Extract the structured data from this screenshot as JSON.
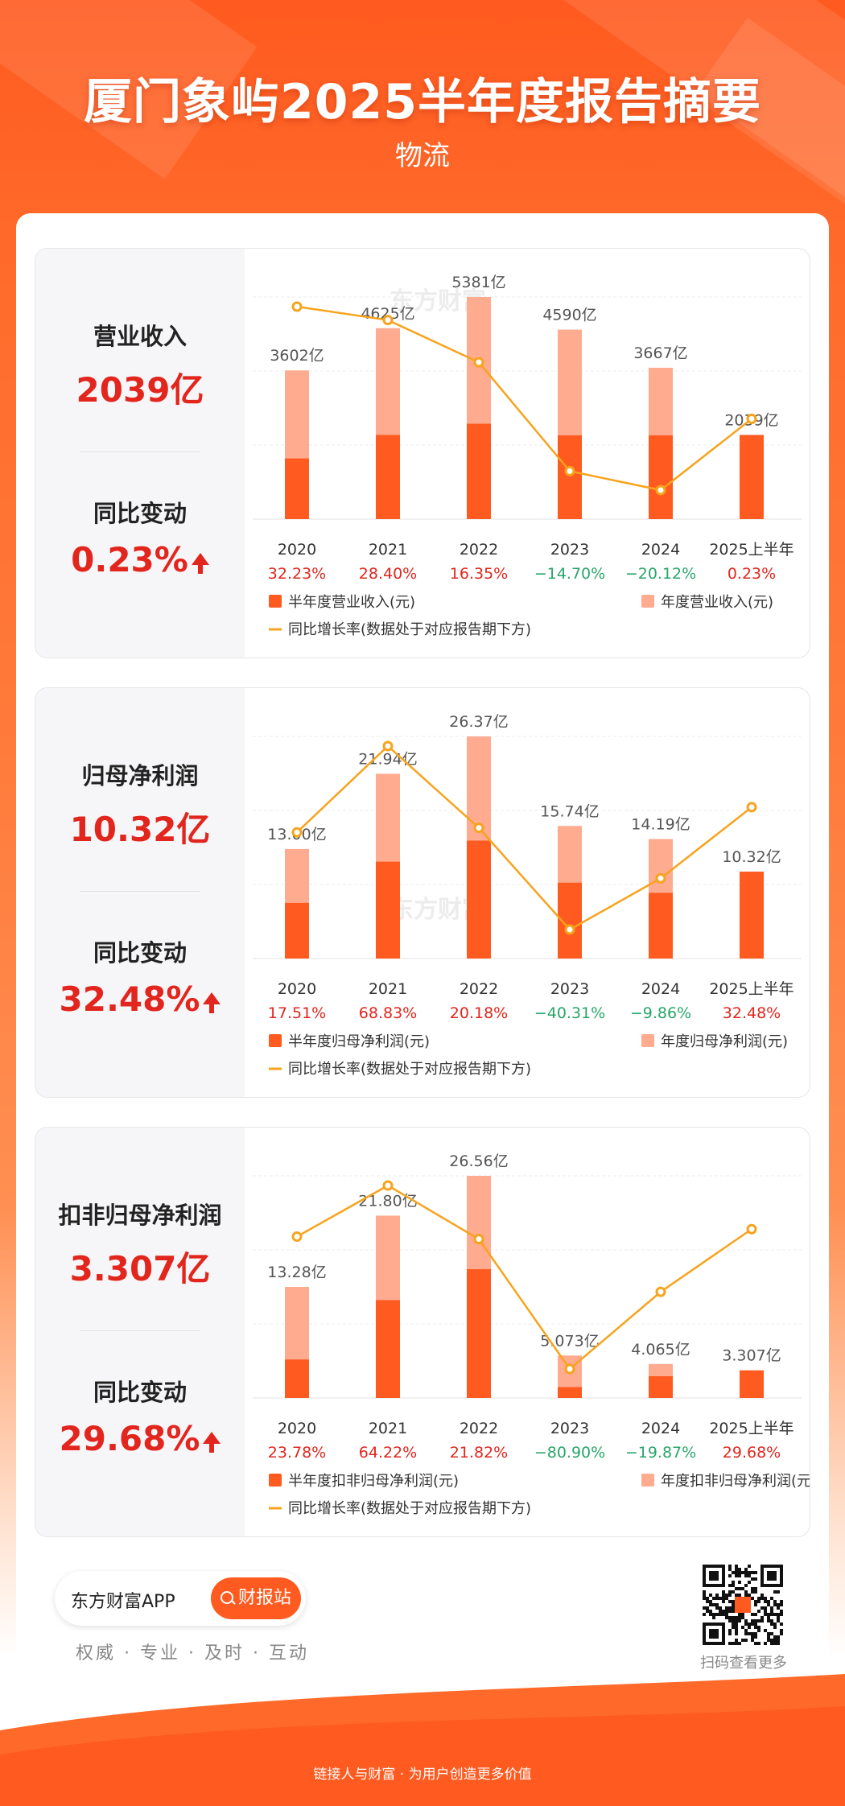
{
  "header": {
    "title": "厦门象屿2025半年度报告摘要",
    "subtitle": "物流"
  },
  "watermark": "东方财富",
  "trend_arrow": "up-arrow-icon",
  "colors": {
    "half_bar": "#ff5a1f",
    "annual_bar": "#ffab90",
    "line": "#f7a31c",
    "positive": "#e2261d",
    "negative": "#27a66a",
    "brand": "#ff5a1f"
  },
  "panels": [
    {
      "label": "营业收入",
      "value": "2039亿",
      "change_label": "同比变动",
      "change": "0.23%"
    },
    {
      "label": "归母净利润",
      "value": "10.32亿",
      "change_label": "同比变动",
      "change": "32.48%"
    },
    {
      "label": "扣非归母净利润",
      "value": "3.307亿",
      "change_label": "同比变动",
      "change": "29.68%"
    }
  ],
  "chart_data": [
    {
      "type": "bar",
      "categories": [
        "2020",
        "2021",
        "2022",
        "2023",
        "2024",
        "2025上半年"
      ],
      "series": [
        {
          "name": "半年度营业收入(元)",
          "values": [
            1470,
            2040,
            2310,
            2030,
            2030,
            2039
          ]
        },
        {
          "name": "年度营业收入(元)",
          "values": [
            3602,
            4625,
            5381,
            4590,
            3667,
            null
          ]
        },
        {
          "name": "同比增长率(数据处于对应报告期下方)",
          "type": "line",
          "values": [
            32.23,
            28.4,
            16.35,
            -14.7,
            -20.12,
            0.23
          ]
        }
      ],
      "bar_labels": [
        "3602亿",
        "4625亿",
        "5381亿",
        "4590亿",
        "3667亿",
        "2039亿"
      ],
      "growth_labels": [
        "32.23%",
        "28.40%",
        "16.35%",
        "−14.70%",
        "−20.12%",
        "0.23%"
      ],
      "bar_max": 5381,
      "line_range": [
        -20.12,
        32.23
      ]
    },
    {
      "type": "bar",
      "categories": [
        "2020",
        "2021",
        "2022",
        "2023",
        "2024",
        "2025上半年"
      ],
      "series": [
        {
          "name": "半年度归母净利润(元)",
          "values": [
            6.6,
            11.5,
            14.0,
            9.0,
            7.8,
            10.32
          ]
        },
        {
          "name": "年度归母净利润(元)",
          "values": [
            13.0,
            21.94,
            26.37,
            15.74,
            14.19,
            null
          ]
        },
        {
          "name": "同比增长率(数据处于对应报告期下方)",
          "type": "line",
          "values": [
            17.51,
            68.83,
            20.18,
            -40.31,
            -9.86,
            32.48
          ]
        }
      ],
      "bar_labels": [
        "13.00亿",
        "21.94亿",
        "26.37亿",
        "15.74亿",
        "14.19亿",
        "10.32亿"
      ],
      "growth_labels": [
        "17.51%",
        "68.83%",
        "20.18%",
        "−40.31%",
        "−9.86%",
        "32.48%"
      ],
      "bar_max": 26.37,
      "line_range": [
        -40.31,
        68.83
      ]
    },
    {
      "type": "bar",
      "categories": [
        "2020",
        "2021",
        "2022",
        "2023",
        "2024",
        "2025上半年"
      ],
      "series": [
        {
          "name": "半年度扣非归母净利润(元)",
          "values": [
            4.6,
            11.7,
            15.4,
            1.3,
            2.6,
            3.307
          ]
        },
        {
          "name": "年度扣非归母净利润(元)",
          "values": [
            13.28,
            21.8,
            26.56,
            5.073,
            4.065,
            null
          ]
        },
        {
          "name": "同比增长率(数据处于对应报告期下方)",
          "type": "line",
          "values": [
            23.78,
            64.22,
            21.82,
            -80.9,
            -19.87,
            29.68
          ]
        }
      ],
      "bar_labels": [
        "13.28亿",
        "21.80亿",
        "26.56亿",
        "5.073亿",
        "4.065亿",
        "3.307亿"
      ],
      "growth_labels": [
        "23.78%",
        "64.22%",
        "21.82%",
        "−80.90%",
        "−19.87%",
        "29.68%"
      ],
      "bar_max": 26.56,
      "line_range": [
        -80.9,
        64.22
      ]
    }
  ],
  "footer": {
    "app_name": "东方财富APP",
    "button": "财报站",
    "slogan": "权威 · 专业 · 及时 · 互动",
    "qr_caption": "扫码查看更多",
    "bottom_text": "链接人与财富 · 为用户创造更多价值"
  }
}
